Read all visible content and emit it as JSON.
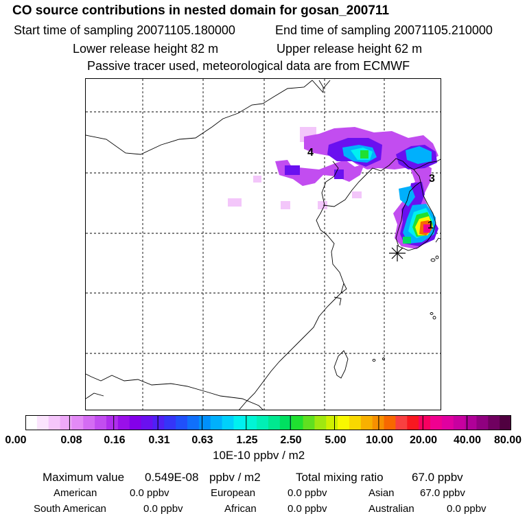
{
  "header": {
    "title": "CO  source contributions in nested domain for gosan_200711",
    "start_label": "Start time of sampling 20071105.180000",
    "end_label": "End time of sampling 20071105.210000",
    "lower_label": "Lower release height   82 m",
    "upper_label": "Upper release height   62 m",
    "tracer_note": "Passive tracer used, meteorological data are from ECMWF"
  },
  "map": {
    "site_labels": [
      "4",
      "3",
      "1"
    ],
    "receptor_marker": "asterisk-icon"
  },
  "colorbar": {
    "ticks": [
      "0.00",
      "0.08",
      "0.16",
      "0.31",
      "0.63",
      "1.25",
      "2.50",
      "5.00",
      "10.00",
      "20.00",
      "40.00",
      "80.00"
    ],
    "unit": "10E-10 ppbv / m2",
    "colors": [
      "#ffffff",
      "#fbe4fd",
      "#f5c6fb",
      "#eea9f9",
      "#e38af6",
      "#d46cf3",
      "#c24df0",
      "#b02eed",
      "#9a10ea",
      "#8300ea",
      "#6a10f0",
      "#5020f5",
      "#3535f8",
      "#2050fa",
      "#1070fb",
      "#0090fc",
      "#00b0fc",
      "#00d0fa",
      "#00f0f0",
      "#00f5d5",
      "#00f0b5",
      "#00e890",
      "#00e060",
      "#20e030",
      "#60e020",
      "#a0e810",
      "#d0f000",
      "#f8f800",
      "#f8d800",
      "#f8b000",
      "#f89000",
      "#f86800",
      "#f84040",
      "#f81820",
      "#f80060",
      "#f00090",
      "#e000a0",
      "#c800a0",
      "#b00098",
      "#900080",
      "#700060",
      "#500040"
    ]
  },
  "footer": {
    "max_label": "Maximum value",
    "max_value": "0.549E-08",
    "max_unit": "ppbv / m2",
    "total_label": "Total mixing ratio",
    "total_value": "67.0 ppbv",
    "regions": [
      {
        "name": "American",
        "value": "0.0 ppbv"
      },
      {
        "name": "European",
        "value": "0.0 ppbv"
      },
      {
        "name": "Asian",
        "value": "67.0 ppbv"
      },
      {
        "name": "South American",
        "value": "0.0 ppbv"
      },
      {
        "name": "African",
        "value": "0.0 ppbv"
      },
      {
        "name": "Australian",
        "value": "0.0 ppbv"
      }
    ]
  }
}
